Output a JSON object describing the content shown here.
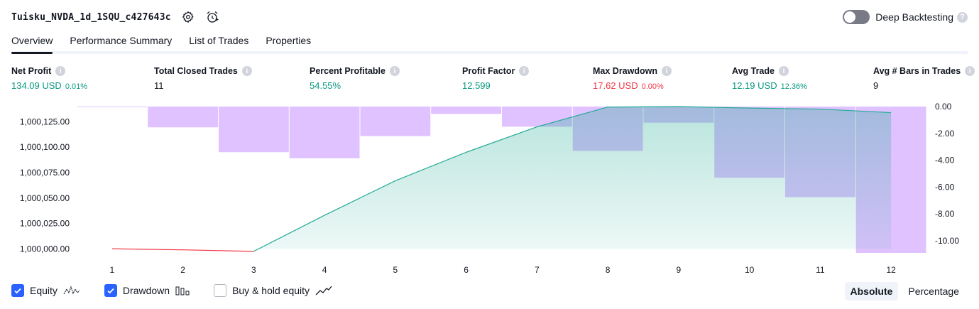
{
  "header": {
    "title": "Tuisku_NVDA_1d_1SQU_c427643c",
    "settings_icon": "gear-icon",
    "alert_icon": "alarm-clock-icon"
  },
  "deep_backtesting": {
    "label": "Deep Backtesting",
    "enabled": false,
    "help_icon": "question-icon"
  },
  "tabs": [
    {
      "label": "Overview",
      "active": true
    },
    {
      "label": "Performance Summary",
      "active": false
    },
    {
      "label": "List of Trades",
      "active": false
    },
    {
      "label": "Properties",
      "active": false
    }
  ],
  "metrics": [
    {
      "label": "Net Profit",
      "value": "134.09 USD",
      "pct": "0.01%",
      "color": "green"
    },
    {
      "label": "Total Closed Trades",
      "value": "11",
      "pct": "",
      "color": "black"
    },
    {
      "label": "Percent Profitable",
      "value": "54.55%",
      "pct": "",
      "color": "green"
    },
    {
      "label": "Profit Factor",
      "value": "12.599",
      "pct": "",
      "color": "green"
    },
    {
      "label": "Max Drawdown",
      "value": "17.62 USD",
      "pct": "0.00%",
      "color": "red"
    },
    {
      "label": "Avg Trade",
      "value": "12.19 USD",
      "pct": "12.36%",
      "color": "green"
    },
    {
      "label": "Avg # Bars in Trades",
      "value": "9",
      "pct": "",
      "color": "black"
    }
  ],
  "chart_data": {
    "type": "bar",
    "x": [
      1,
      2,
      3,
      4,
      5,
      6,
      7,
      8,
      9,
      10,
      11,
      12
    ],
    "left_axis": {
      "ticks": [
        "1,000,125.00",
        "1,000,100.00",
        "1,000,075.00",
        "1,000,050.00",
        "1,000,025.00",
        "1,000,000.00"
      ],
      "range": [
        999996,
        1000140
      ]
    },
    "right_axis": {
      "ticks": [
        "0.00",
        "-2.00",
        "-4.00",
        "-6.00",
        "-8.00",
        "-10.00"
      ],
      "range": [
        -10.9,
        0
      ]
    },
    "series": [
      {
        "name": "Equity",
        "type": "area",
        "axis": "left",
        "values": [
          1000000.0,
          999999.0,
          999997.5,
          1000033.0,
          1000067.0,
          1000095.0,
          1000120.0,
          1000139.5,
          1000140.0,
          1000138.5,
          1000137.5,
          1000134.0
        ]
      },
      {
        "name": "Drawdown",
        "type": "bar",
        "axis": "right",
        "values": [
          0.0,
          -1.55,
          -3.4,
          -3.85,
          -2.2,
          -0.55,
          -1.5,
          -3.3,
          -1.2,
          -5.3,
          -6.75,
          -10.9
        ]
      }
    ],
    "colors": {
      "equity_positive_line": "#22ab94",
      "equity_negative_line": "#f23645",
      "equity_fill": "#22ab94",
      "drawdown_bar": "#d1a8ff"
    }
  },
  "legend": [
    {
      "label": "Equity",
      "checked": true,
      "icon": "equity-line-icon"
    },
    {
      "label": "Drawdown",
      "checked": true,
      "icon": "drawdown-bars-icon"
    },
    {
      "label": "Buy & hold equity",
      "checked": false,
      "icon": "buyhold-line-icon"
    }
  ],
  "modes": [
    {
      "label": "Absolute",
      "active": true
    },
    {
      "label": "Percentage",
      "active": false
    }
  ]
}
